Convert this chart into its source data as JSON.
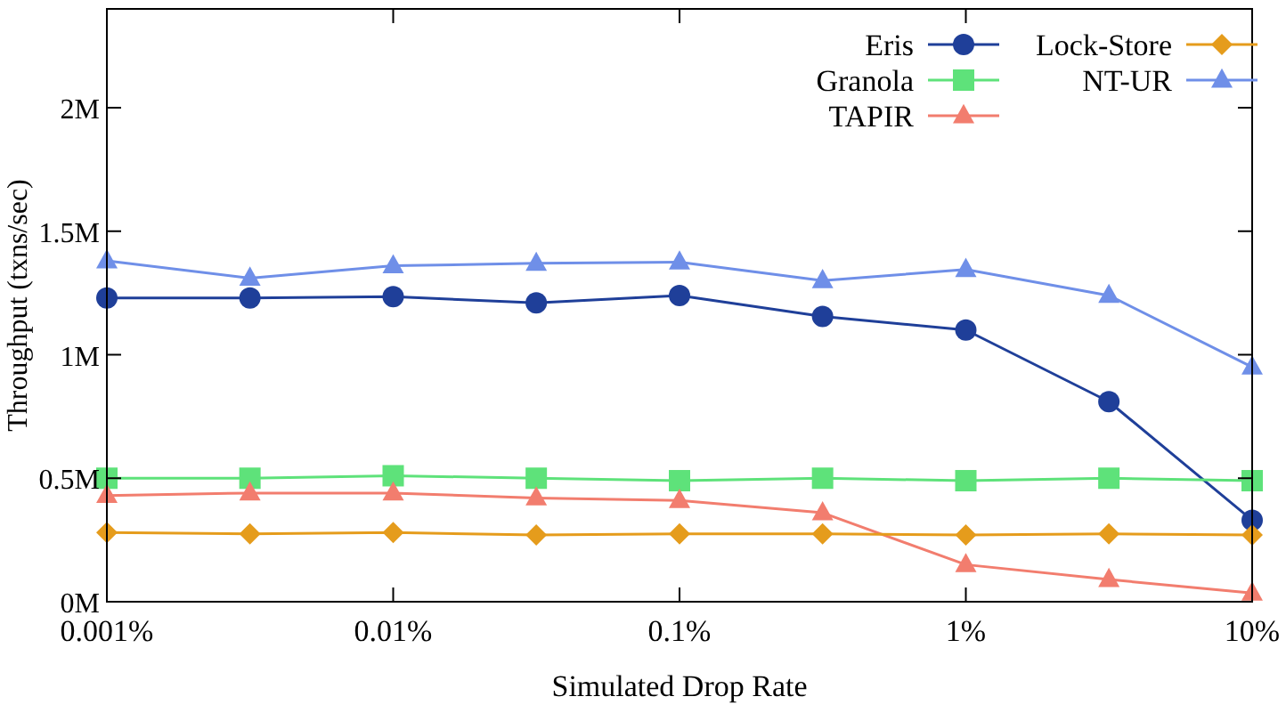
{
  "chart_data": {
    "type": "line",
    "xlabel": "Simulated Drop Rate",
    "ylabel": "Throughput (txns/sec)",
    "log": "x",
    "grid": false,
    "legend": "top right",
    "x": [
      0.001,
      0.00316,
      0.01,
      0.0316,
      0.1,
      0.316,
      1,
      3.16,
      10
    ],
    "xlim": [
      0.001,
      10
    ],
    "xticks": [
      {
        "value": 0.001,
        "label": "0.001%"
      },
      {
        "value": 0.01,
        "label": "0.01%"
      },
      {
        "value": 0.1,
        "label": "0.1%"
      },
      {
        "value": 1,
        "label": "1%"
      },
      {
        "value": 10,
        "label": "10%"
      }
    ],
    "ylim": [
      0,
      2.4
    ],
    "yticks": [
      {
        "value": 0,
        "label": "0M"
      },
      {
        "value": 0.5,
        "label": "0.5M"
      },
      {
        "value": 1,
        "label": "1M"
      },
      {
        "value": 1.5,
        "label": "1.5M"
      },
      {
        "value": 2,
        "label": "2M"
      }
    ],
    "series": [
      {
        "name": "Eris",
        "color": "#1f3f99",
        "marker": "circle",
        "values": [
          1.23,
          1.23,
          1.235,
          1.21,
          1.24,
          1.155,
          1.1,
          0.81,
          0.33
        ]
      },
      {
        "name": "Granola",
        "color": "#5ee27a",
        "marker": "square",
        "values": [
          0.5,
          0.5,
          0.51,
          0.5,
          0.49,
          0.5,
          0.49,
          0.5,
          0.49
        ]
      },
      {
        "name": "TAPIR",
        "color": "#f27d6e",
        "marker": "triangle",
        "values": [
          0.43,
          0.44,
          0.44,
          0.42,
          0.41,
          0.36,
          0.15,
          0.09,
          0.035
        ]
      },
      {
        "name": "Lock-Store",
        "color": "#e59c1c",
        "marker": "diamond",
        "values": [
          0.28,
          0.275,
          0.28,
          0.27,
          0.275,
          0.275,
          0.27,
          0.275,
          0.27
        ]
      },
      {
        "name": "NT-UR",
        "color": "#6f8fe8",
        "marker": "triangle",
        "values": [
          1.38,
          1.31,
          1.36,
          1.37,
          1.375,
          1.3,
          1.345,
          1.24,
          0.95
        ]
      }
    ]
  }
}
